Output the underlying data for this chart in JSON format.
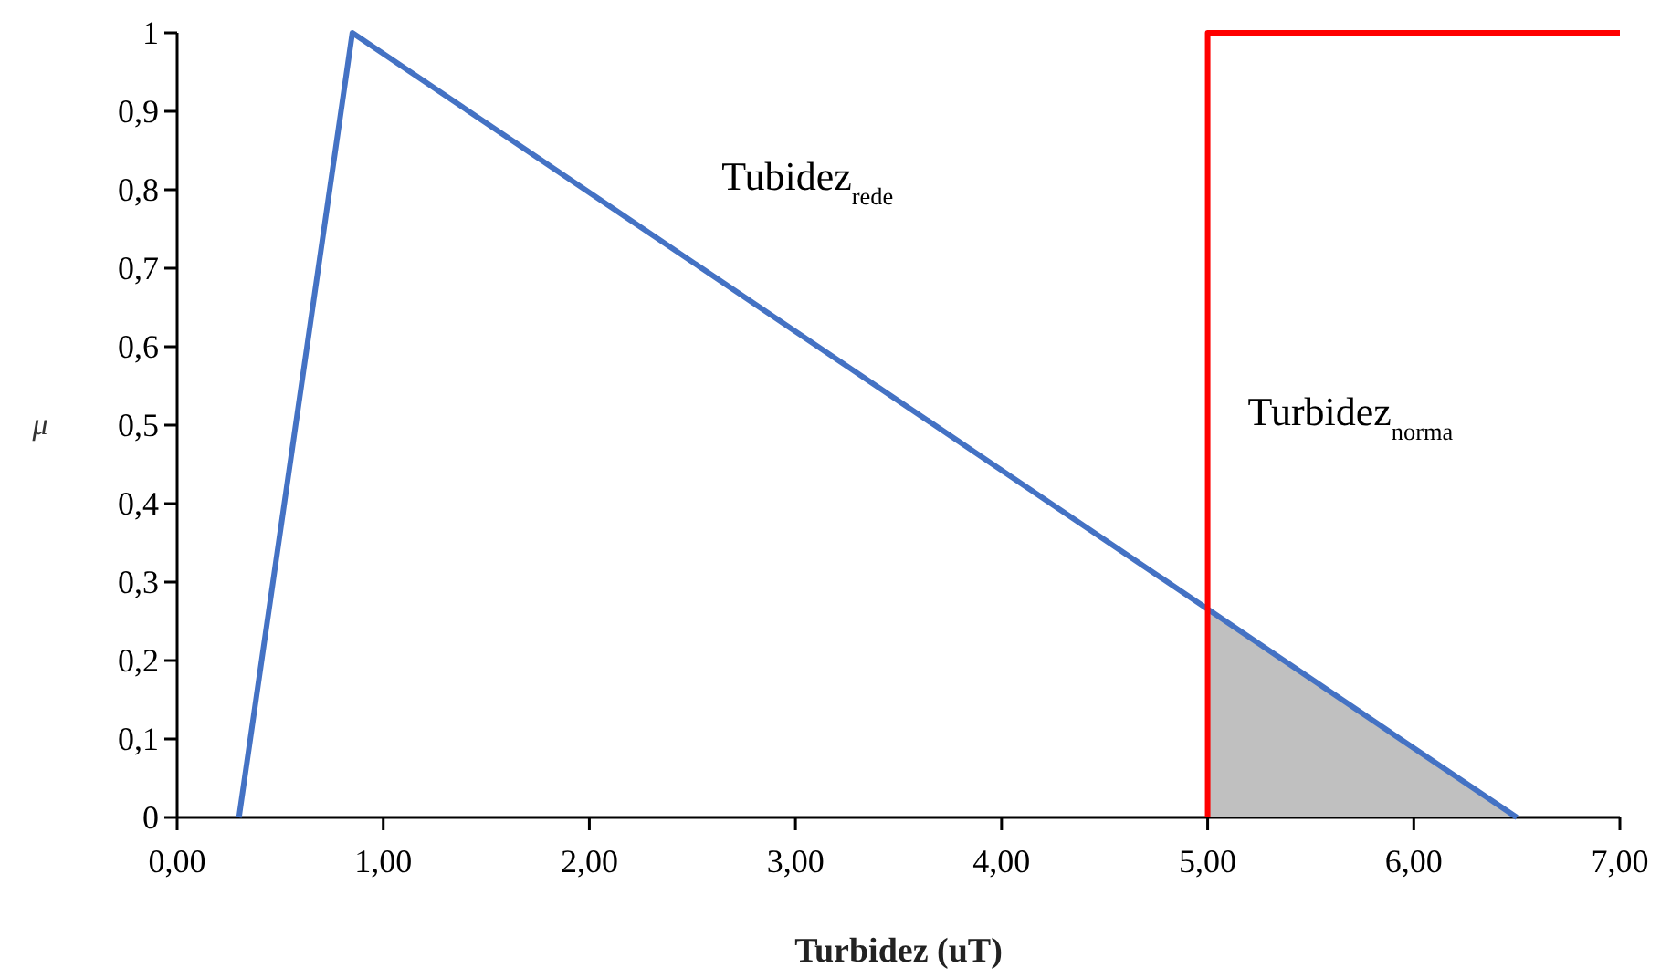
{
  "chart_data": {
    "type": "line",
    "xlabel": "Turbidez (uT)",
    "ylabel": "μ",
    "xlim": [
      0,
      7
    ],
    "ylim": [
      0,
      1
    ],
    "xticks": [
      {
        "value": 0,
        "label": "0,00"
      },
      {
        "value": 1,
        "label": "1,00"
      },
      {
        "value": 2,
        "label": "2,00"
      },
      {
        "value": 3,
        "label": "3,00"
      },
      {
        "value": 4,
        "label": "4,00"
      },
      {
        "value": 5,
        "label": "5,00"
      },
      {
        "value": 6,
        "label": "6,00"
      },
      {
        "value": 7,
        "label": "7,00"
      }
    ],
    "yticks": [
      0,
      {
        "value": 0.1,
        "label": "0,1"
      },
      {
        "value": 0.2,
        "label": "0,2"
      },
      {
        "value": 0.3,
        "label": "0,3"
      },
      {
        "value": 0.4,
        "label": "0,4"
      },
      {
        "value": 0.5,
        "label": "0,5"
      },
      {
        "value": 0.6,
        "label": "0,6"
      },
      {
        "value": 0.7,
        "label": "0,7"
      },
      {
        "value": 0.8,
        "label": "0,8"
      },
      {
        "value": 0.9,
        "label": "0,9"
      },
      1
    ],
    "grid": false,
    "legend": false,
    "series": [
      {
        "type": "area",
        "color": "#c0c0c0",
        "x": [
          5,
          6.5
        ],
        "values": [
          0.265,
          0
        ]
      },
      {
        "name": "Tubidez$_{rede}$",
        "color": "#4472c4",
        "x": [
          0.3,
          0.85,
          6.5
        ],
        "values": [
          0,
          1,
          0
        ]
      },
      {
        "name": "Turbidez$_{norma}$",
        "color": "#ff0000",
        "x": [
          5,
          5,
          7
        ],
        "values": [
          0,
          1,
          1
        ]
      }
    ]
  }
}
